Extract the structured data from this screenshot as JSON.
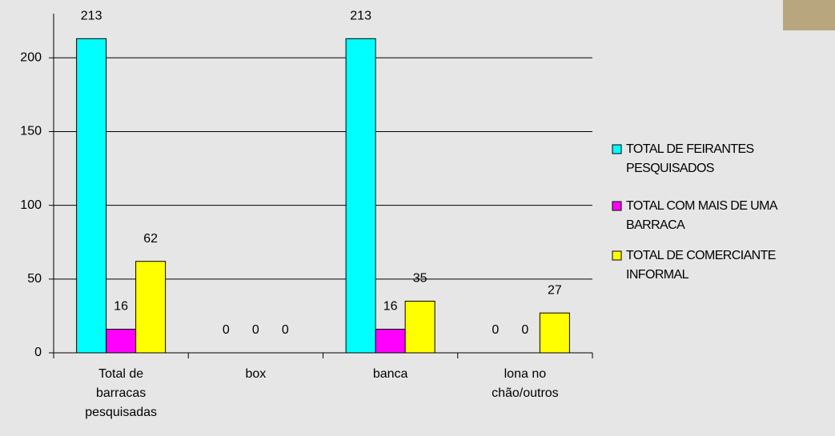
{
  "chart_data": {
    "type": "bar",
    "categories": [
      "Total de barracas pesquisadas",
      "box",
      "banca",
      "lona no chão/outros"
    ],
    "series": [
      {
        "name": "TOTAL DE FEIRANTES PESQUISADOS",
        "color": "#00ffff",
        "values": [
          213,
          0,
          213,
          0
        ]
      },
      {
        "name": "TOTAL COM MAIS DE UMA BARRACA",
        "color": "#ff00ff",
        "values": [
          16,
          0,
          16,
          0
        ]
      },
      {
        "name": "TOTAL DE COMERCIANTE INFORMAL",
        "color": "#ffff00",
        "values": [
          62,
          0,
          35,
          27
        ]
      }
    ],
    "ylim": [
      0,
      230
    ],
    "yticks": [
      0,
      50,
      100,
      150,
      200
    ],
    "grid": true,
    "legend": "right"
  }
}
